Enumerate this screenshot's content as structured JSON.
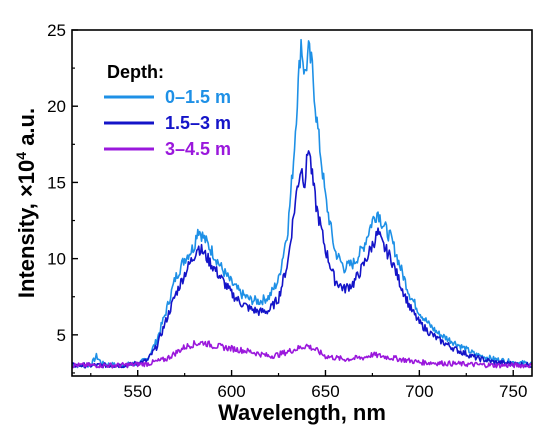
{
  "chart_data": {
    "type": "line",
    "xlabel": "Wavelength, nm",
    "ylabel_prefix": "Intensity, ×10",
    "ylabel_sup": "4",
    "ylabel_suffix": " a.u.",
    "xlim": [
      515,
      760
    ],
    "ylim": [
      2.3,
      25
    ],
    "x_ticks": [
      550,
      600,
      650,
      700,
      750
    ],
    "y_ticks": [
      5,
      10,
      15,
      20,
      25
    ],
    "grid": false,
    "legend_title": "Depth:",
    "legend_position": "top-left",
    "series": [
      {
        "name": "0–1.5 m",
        "color": "#1e90e6",
        "points": [
          [
            515,
            3.0
          ],
          [
            525,
            3.0
          ],
          [
            528,
            3.6
          ],
          [
            531,
            3.1
          ],
          [
            540,
            3.0
          ],
          [
            550,
            3.1
          ],
          [
            555,
            3.4
          ],
          [
            560,
            4.6
          ],
          [
            565,
            6.5
          ],
          [
            570,
            8.7
          ],
          [
            575,
            10.0
          ],
          [
            580,
            10.8
          ],
          [
            582,
            12.0
          ],
          [
            585,
            11.4
          ],
          [
            590,
            10.4
          ],
          [
            595,
            9.3
          ],
          [
            600,
            8.4
          ],
          [
            605,
            7.7
          ],
          [
            610,
            7.3
          ],
          [
            615,
            7.2
          ],
          [
            620,
            7.5
          ],
          [
            625,
            8.6
          ],
          [
            630,
            12.0
          ],
          [
            633,
            16.5
          ],
          [
            635,
            20.5
          ],
          [
            637,
            24.3
          ],
          [
            639,
            22.0
          ],
          [
            641,
            23.6
          ],
          [
            643,
            22.5
          ],
          [
            645,
            19.5
          ],
          [
            650,
            14.0
          ],
          [
            655,
            10.5
          ],
          [
            660,
            9.4
          ],
          [
            665,
            9.7
          ],
          [
            670,
            10.7
          ],
          [
            675,
            12.5
          ],
          [
            678,
            13.1
          ],
          [
            680,
            12.4
          ],
          [
            685,
            11.3
          ],
          [
            690,
            9.4
          ],
          [
            695,
            7.6
          ],
          [
            700,
            6.5
          ],
          [
            705,
            5.7
          ],
          [
            710,
            5.1
          ],
          [
            720,
            4.4
          ],
          [
            730,
            3.7
          ],
          [
            740,
            3.4
          ],
          [
            750,
            3.2
          ],
          [
            760,
            3.1
          ]
        ]
      },
      {
        "name": "1.5–3 m",
        "color": "#1414c8",
        "points": [
          [
            515,
            3.0
          ],
          [
            530,
            3.0
          ],
          [
            545,
            3.0
          ],
          [
            555,
            3.3
          ],
          [
            560,
            4.2
          ],
          [
            565,
            5.9
          ],
          [
            570,
            7.6
          ],
          [
            575,
            9.0
          ],
          [
            580,
            10.2
          ],
          [
            582,
            10.8
          ],
          [
            585,
            10.4
          ],
          [
            590,
            9.5
          ],
          [
            595,
            8.6
          ],
          [
            600,
            7.7
          ],
          [
            605,
            7.1
          ],
          [
            610,
            6.7
          ],
          [
            615,
            6.5
          ],
          [
            620,
            6.6
          ],
          [
            625,
            7.4
          ],
          [
            630,
            9.8
          ],
          [
            633,
            12.8
          ],
          [
            635,
            14.7
          ],
          [
            637,
            16.0
          ],
          [
            639,
            15.0
          ],
          [
            641,
            17.5
          ],
          [
            643,
            15.3
          ],
          [
            645,
            13.5
          ],
          [
            650,
            10.6
          ],
          [
            655,
            8.6
          ],
          [
            660,
            8.0
          ],
          [
            665,
            8.4
          ],
          [
            670,
            9.5
          ],
          [
            675,
            10.9
          ],
          [
            678,
            11.7
          ],
          [
            680,
            11.0
          ],
          [
            685,
            10.0
          ],
          [
            690,
            8.3
          ],
          [
            695,
            6.8
          ],
          [
            700,
            5.8
          ],
          [
            705,
            5.2
          ],
          [
            710,
            4.7
          ],
          [
            720,
            4.0
          ],
          [
            730,
            3.5
          ],
          [
            740,
            3.2
          ],
          [
            750,
            3.1
          ],
          [
            760,
            3.0
          ]
        ]
      },
      {
        "name": "3–4.5 m",
        "color": "#9a18dc",
        "points": [
          [
            515,
            3.0
          ],
          [
            540,
            3.0
          ],
          [
            555,
            3.1
          ],
          [
            565,
            3.4
          ],
          [
            570,
            3.8
          ],
          [
            575,
            4.2
          ],
          [
            580,
            4.4
          ],
          [
            585,
            4.5
          ],
          [
            590,
            4.3
          ],
          [
            600,
            4.1
          ],
          [
            610,
            3.9
          ],
          [
            620,
            3.6
          ],
          [
            625,
            3.7
          ],
          [
            630,
            3.9
          ],
          [
            635,
            4.1
          ],
          [
            640,
            4.3
          ],
          [
            645,
            4.0
          ],
          [
            650,
            3.6
          ],
          [
            660,
            3.4
          ],
          [
            670,
            3.5
          ],
          [
            675,
            3.7
          ],
          [
            680,
            3.6
          ],
          [
            690,
            3.4
          ],
          [
            700,
            3.2
          ],
          [
            720,
            3.1
          ],
          [
            740,
            3.0
          ],
          [
            760,
            3.0
          ]
        ]
      }
    ]
  }
}
